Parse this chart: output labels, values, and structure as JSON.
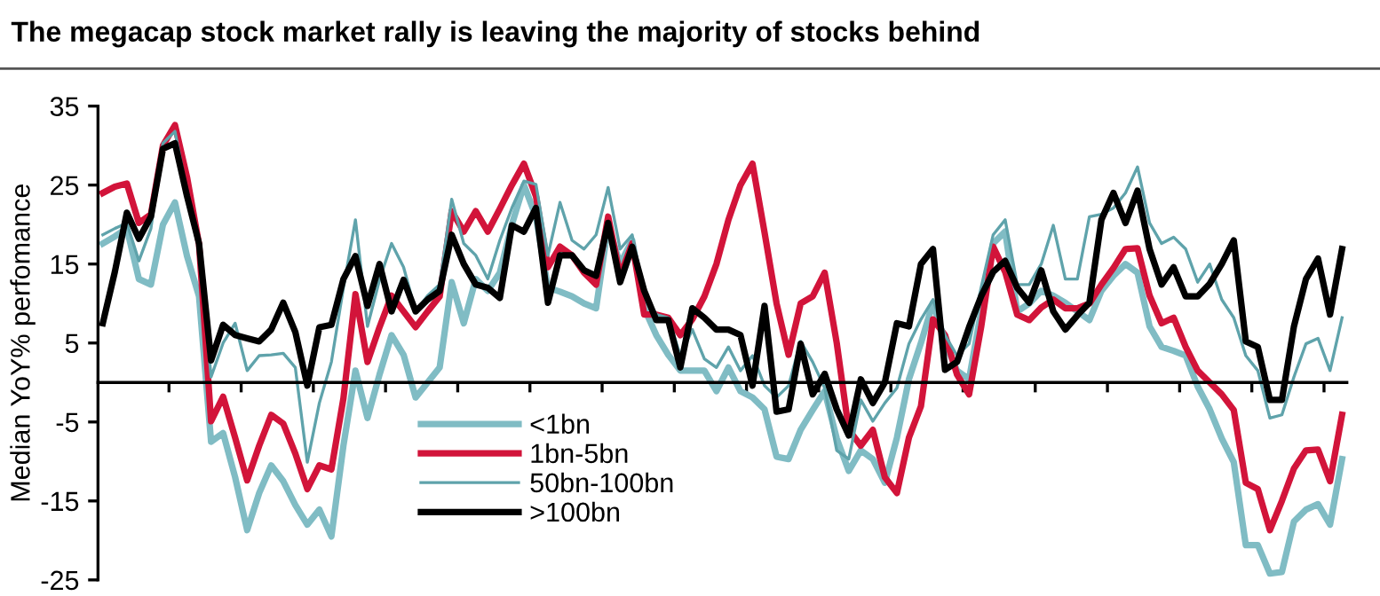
{
  "chart_data": {
    "type": "line",
    "title": "The megacap stock market rally is leaving the majority of stocks behind",
    "ylabel": "Median YoY% perfomance",
    "categories": [
      null,
      null,
      null,
      null,
      null,
      null,
      null,
      null,
      null,
      null,
      null,
      null,
      null,
      null,
      null,
      null,
      null,
      null,
      null,
      null,
      null,
      null,
      null,
      null,
      null,
      null,
      null,
      null,
      null,
      null,
      null,
      null,
      null,
      null,
      null,
      null,
      null,
      null,
      null,
      null,
      null,
      null,
      null,
      null,
      null,
      null,
      null,
      null,
      null,
      null,
      null,
      null,
      null,
      null,
      null,
      null,
      null,
      null,
      null,
      null,
      null,
      null,
      null,
      null,
      null,
      null,
      null,
      null,
      null,
      null,
      null,
      null,
      null,
      null,
      null,
      null,
      null,
      null,
      null,
      null,
      null,
      null,
      null,
      null,
      null,
      null,
      null,
      null,
      null,
      null,
      null,
      null,
      null,
      null,
      null,
      null,
      null,
      null,
      null,
      null,
      null,
      null,
      null,
      null
    ],
    "series": [
      {
        "name": "<1bn",
        "color": "#80bcc4",
        "values": [
          17.6,
          18.5,
          19.5,
          13.1,
          12.4,
          20,
          22.8,
          16,
          10.9,
          -7.5,
          -6.4,
          -12,
          -18.7,
          -14,
          -10.5,
          -12.5,
          -15.5,
          -18,
          -16.1,
          -19.5,
          -8,
          1.5,
          -4.5,
          1,
          6,
          3.5,
          -1.9,
          0,
          1.9,
          12.7,
          7.5,
          13.1,
          11.6,
          13.9,
          20,
          25,
          21,
          12,
          11.5,
          10.9,
          10,
          9.4,
          19.9,
          15,
          18,
          9.4,
          6,
          3.5,
          1.5,
          1.5,
          1.5,
          -1.1,
          1.9,
          -1.1,
          -1.9,
          -3.4,
          -9.4,
          -9.7,
          -6,
          -3.5,
          -1.1,
          -7.1,
          -11.2,
          -8.6,
          -9.7,
          -12.7,
          -7,
          0.4,
          5,
          10.1,
          5,
          1.5,
          0.4,
          9,
          17.6,
          19.1,
          9,
          10,
          11.6,
          11,
          10.1,
          9,
          7.9,
          11.6,
          13.5,
          15,
          13.9,
          7.1,
          4.5,
          4,
          3.4,
          -0.5,
          -3.4,
          -7.1,
          -10.1,
          -20.6,
          -20.6,
          -24.2,
          -24,
          -17.6,
          -16.1,
          -15.4,
          -18,
          -9.7
        ]
      },
      {
        "name": "1bn-5bn",
        "color": "#d2143a",
        "values": [
          24,
          24.8,
          25.2,
          20.2,
          21.3,
          30,
          32.6,
          26,
          17.5,
          -4.9,
          -1.8,
          -7,
          -12.4,
          -8,
          -4.1,
          -5.2,
          -9,
          -13.5,
          -10.5,
          -11,
          -2,
          11.2,
          2.6,
          7,
          11,
          9,
          7,
          9,
          10.9,
          21.7,
          19.1,
          21.7,
          19.1,
          22,
          25,
          27.7,
          23.6,
          14.6,
          17.2,
          16.1,
          13.9,
          12.4,
          21,
          13.5,
          17.6,
          8.6,
          8.6,
          8.2,
          6,
          8,
          10.9,
          15,
          20.6,
          25,
          27.7,
          19,
          10,
          3.5,
          10,
          10.9,
          13.9,
          5,
          -6,
          -8,
          -6,
          -12,
          -14,
          -7,
          -3,
          8,
          6,
          1,
          -1.5,
          7,
          17.2,
          14,
          8.6,
          7.9,
          9.5,
          10.5,
          9.4,
          9.4,
          10,
          12.4,
          14.5,
          16.9,
          17,
          11,
          7.5,
          8.2,
          4.5,
          1.5,
          0,
          -1.5,
          -3.5,
          -12.7,
          -13.5,
          -18.7,
          -15,
          -10.9,
          -8.6,
          -8.5,
          -12.5,
          -4.1
        ]
      },
      {
        "name": "50bn-100bn",
        "color": "#5fa3ab",
        "values": [
          18.7,
          19.5,
          20.2,
          15.4,
          19.5,
          30.3,
          31.8,
          24,
          17.6,
          0.7,
          5,
          7.5,
          1.5,
          3.4,
          3.5,
          3.7,
          1.9,
          -10.1,
          -2.6,
          2.6,
          12,
          20.6,
          7.1,
          13,
          17.6,
          14.6,
          9,
          11,
          12.4,
          23.2,
          17.6,
          16.1,
          13.1,
          18,
          22.1,
          25.5,
          25.1,
          16.1,
          22.8,
          18,
          16.9,
          18.7,
          24.7,
          16.9,
          18.7,
          11.2,
          8.6,
          8.2,
          3.4,
          6.7,
          3,
          1.9,
          4.5,
          1.5,
          3.4,
          -0.4,
          -1.9,
          -0.4,
          5.2,
          2.6,
          -0.7,
          -8.6,
          -9.7,
          -2.2,
          -4.9,
          -2.6,
          -0.7,
          4.9,
          8,
          10.5,
          6,
          3.4,
          4.9,
          12,
          18.7,
          20.6,
          12.4,
          12.4,
          15,
          19.9,
          13.1,
          13.1,
          21,
          21.3,
          22.1,
          24,
          27.3,
          20.2,
          17.6,
          18.4,
          16.9,
          12.7,
          15,
          10.5,
          8.2,
          3.4,
          1.5,
          -4.5,
          -4.1,
          0.7,
          4.9,
          5.6,
          1.5,
          8.2
        ]
      },
      {
        "name": ">100bn",
        "color": "#000000",
        "values": [
          7.5,
          14,
          21.5,
          18.2,
          21,
          29.6,
          30.3,
          23.6,
          17.6,
          2.8,
          7.3,
          6,
          5.6,
          5.2,
          6.7,
          10.1,
          6.4,
          -0.4,
          7,
          7.3,
          13.1,
          16,
          9.7,
          15,
          9,
          13,
          9,
          10.5,
          11.6,
          18.7,
          15,
          12.4,
          12,
          10.7,
          19.9,
          19.1,
          22.1,
          10.1,
          16.1,
          16.1,
          14.2,
          13.5,
          20.2,
          12.7,
          17.2,
          11.6,
          7.9,
          7.9,
          1.9,
          9.4,
          8.2,
          6.7,
          6.7,
          6,
          -0.4,
          9.7,
          -3.7,
          -3.4,
          4.9,
          -1.5,
          1.1,
          -3.4,
          -6.7,
          0.4,
          -2.6,
          0,
          7.5,
          7.1,
          15,
          16.9,
          1.6,
          2.6,
          7,
          10.9,
          14,
          15.4,
          12,
          10.1,
          14.2,
          9,
          6.7,
          8.5,
          10.1,
          20.6,
          24,
          20.2,
          24.3,
          16.9,
          12.4,
          14.6,
          10.9,
          10.9,
          12.5,
          15,
          18,
          5.2,
          4.5,
          -2.2,
          -2.2,
          7.1,
          13.1,
          15.7,
          8.6,
          16.9
        ]
      }
    ],
    "ylim": [
      -25,
      35
    ],
    "yticks": [
      -25,
      -15,
      -5,
      5,
      15,
      25,
      35
    ],
    "grid": false,
    "legend": "bottom",
    "marker": "none",
    "line_style": "solid"
  }
}
